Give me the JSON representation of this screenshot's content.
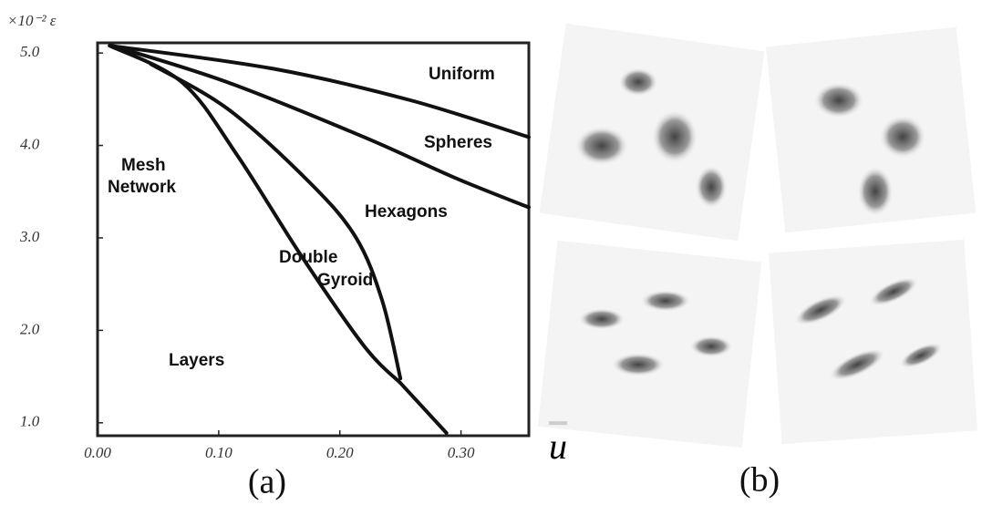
{
  "chart_data": {
    "type": "line",
    "y_exponent_label": "×10⁻² ε",
    "x_label": "u",
    "panel_a": "(a)",
    "panel_b": "(b)",
    "regions": [
      "Uniform",
      "Spheres",
      "Mesh",
      "Network",
      "Hexagons",
      "Double",
      "Gyroid",
      "Layers"
    ],
    "xlim": [
      0,
      0.356
    ],
    "ylim": [
      0.86,
      5.11
    ],
    "xticks": [
      {
        "value": 0,
        "label": "0.00"
      },
      {
        "value": 0.1,
        "label": "0.10"
      },
      {
        "value": 0.2,
        "label": "0.20"
      },
      {
        "value": 0.3,
        "label": "0.30"
      }
    ],
    "yticks": [
      {
        "value": 1,
        "label": "1.0"
      },
      {
        "value": 2,
        "label": "2.0"
      },
      {
        "value": 3,
        "label": "3.0"
      },
      {
        "value": 4,
        "label": "4.0"
      },
      {
        "value": 5,
        "label": "5.0"
      }
    ],
    "color": "#111111",
    "series": [
      {
        "x": [
          0.01,
          0.145,
          0.258,
          0.356
        ],
        "values": [
          5.08,
          4.83,
          4.49,
          4.09
        ]
      },
      {
        "x": [
          0.017,
          0.108,
          0.22,
          0.295,
          0.356
        ],
        "values": [
          5.06,
          4.68,
          4.09,
          3.65,
          3.33
        ]
      },
      {
        "x": [
          0.044,
          0.108,
          0.175,
          0.213,
          0.235,
          0.25
        ],
        "values": [
          4.88,
          4.39,
          3.6,
          3.01,
          2.32,
          1.48
        ]
      },
      {
        "x": [
          0.01,
          0.07,
          0.115,
          0.168,
          0.22,
          0.25
        ],
        "values": [
          5.08,
          4.68,
          3.9,
          2.81,
          1.83,
          1.43
        ]
      },
      {
        "x": [
          0.25,
          0.288
        ],
        "values": [
          1.43,
          0.89
        ]
      }
    ]
  }
}
